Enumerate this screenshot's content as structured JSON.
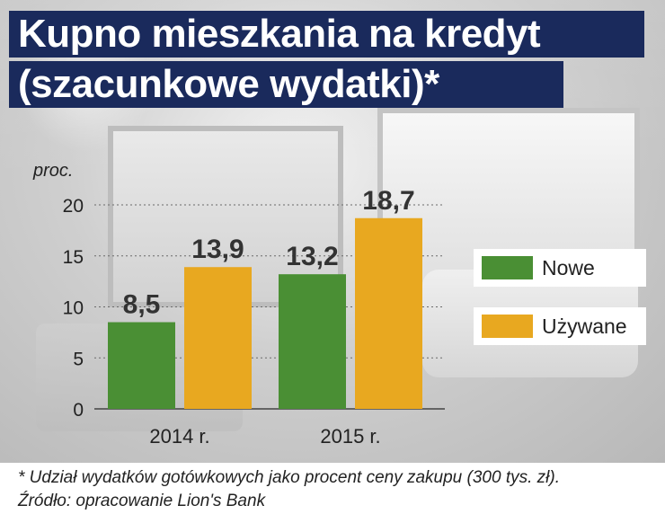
{
  "title": {
    "line1": "Kupno mieszkania na kredyt",
    "line2": "(szacunkowe wydatki)*"
  },
  "colors": {
    "title_bg": "#1a2a5c",
    "nowe": "#4a8f34",
    "uzywane": "#e8a820"
  },
  "chart_data": {
    "type": "bar",
    "ylabel": "proc.",
    "ylim": [
      0,
      20
    ],
    "yticks": [
      "0",
      "5",
      "10",
      "15",
      "20"
    ],
    "categories": [
      "2014 r.",
      "2015 r."
    ],
    "series": [
      {
        "name": "Nowe",
        "values": [
          8.5,
          13.2
        ],
        "labels": [
          "8,5",
          "13,2"
        ],
        "color": "#4a8f34"
      },
      {
        "name": "Używane",
        "values": [
          13.9,
          18.7
        ],
        "labels": [
          "13,9",
          "18,7"
        ],
        "color": "#e8a820"
      }
    ],
    "grid": true,
    "legend_position": "right"
  },
  "footnote": "* Udział wydatków gotówkowych jako procent ceny zakupu (300 tys. zł).",
  "source": "Źródło: opracowanie Lion's Bank"
}
